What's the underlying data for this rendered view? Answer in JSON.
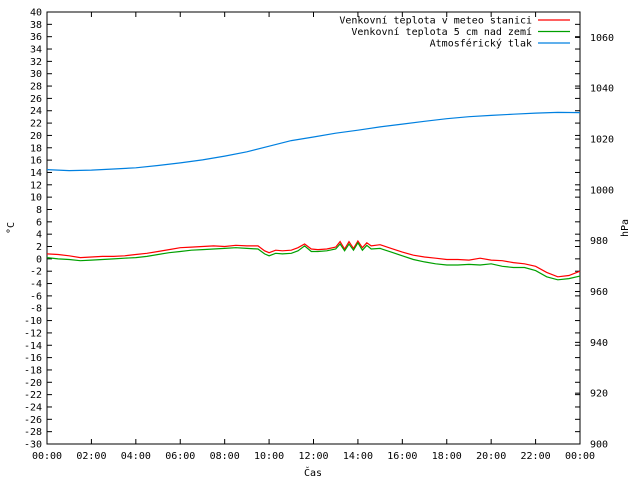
{
  "chart_data": {
    "type": "line",
    "xlabel": "Čas",
    "ylabel_left": "°C",
    "ylabel_right": "hPa",
    "x_ticks": [
      "00:00",
      "02:00",
      "04:00",
      "06:00",
      "08:00",
      "10:00",
      "12:00",
      "14:00",
      "16:00",
      "18:00",
      "20:00",
      "22:00",
      "00:00"
    ],
    "x_range_hours": [
      0,
      24
    ],
    "y_left_range": [
      -30,
      40
    ],
    "y_left_ticks": [
      40,
      38,
      36,
      34,
      32,
      30,
      28,
      26,
      24,
      22,
      20,
      18,
      16,
      14,
      12,
      10,
      8,
      6,
      4,
      2,
      0,
      -2,
      -4,
      -6,
      -8,
      -10,
      -12,
      -14,
      -16,
      -18,
      -20,
      -22,
      -24,
      -26,
      -28,
      -30
    ],
    "y_right_range": [
      900,
      1070
    ],
    "y_right_ticks": [
      1060,
      1040,
      1020,
      1000,
      980,
      960,
      940,
      920,
      900
    ],
    "grid": false,
    "legend_position": "top-right",
    "series": [
      {
        "name": "Venkovní teplota v meteo stanici",
        "axis": "left",
        "color": "#ff0000",
        "points": [
          [
            0,
            0.8
          ],
          [
            0.5,
            0.7
          ],
          [
            1,
            0.5
          ],
          [
            1.5,
            0.2
          ],
          [
            2,
            0.3
          ],
          [
            2.5,
            0.4
          ],
          [
            3,
            0.4
          ],
          [
            3.5,
            0.5
          ],
          [
            4,
            0.7
          ],
          [
            4.5,
            0.9
          ],
          [
            5,
            1.2
          ],
          [
            5.5,
            1.5
          ],
          [
            6,
            1.8
          ],
          [
            6.5,
            1.9
          ],
          [
            7,
            2.0
          ],
          [
            7.5,
            2.1
          ],
          [
            8,
            2.0
          ],
          [
            8.5,
            2.2
          ],
          [
            9,
            2.1
          ],
          [
            9.5,
            2.1
          ],
          [
            9.8,
            1.3
          ],
          [
            10,
            1.0
          ],
          [
            10.3,
            1.4
          ],
          [
            10.6,
            1.3
          ],
          [
            11,
            1.4
          ],
          [
            11.3,
            1.8
          ],
          [
            11.6,
            2.4
          ],
          [
            11.9,
            1.6
          ],
          [
            12.2,
            1.5
          ],
          [
            12.6,
            1.6
          ],
          [
            13,
            1.9
          ],
          [
            13.2,
            2.8
          ],
          [
            13.4,
            1.6
          ],
          [
            13.6,
            2.8
          ],
          [
            13.8,
            1.7
          ],
          [
            14,
            2.9
          ],
          [
            14.2,
            1.8
          ],
          [
            14.4,
            2.6
          ],
          [
            14.6,
            2.1
          ],
          [
            15,
            2.3
          ],
          [
            15.5,
            1.7
          ],
          [
            16,
            1.1
          ],
          [
            16.5,
            0.6
          ],
          [
            17,
            0.3
          ],
          [
            17.5,
            0.1
          ],
          [
            18,
            -0.1
          ],
          [
            18.5,
            -0.1
          ],
          [
            19,
            -0.2
          ],
          [
            19.5,
            0.1
          ],
          [
            20,
            -0.2
          ],
          [
            20.5,
            -0.3
          ],
          [
            21,
            -0.6
          ],
          [
            21.5,
            -0.8
          ],
          [
            22,
            -1.2
          ],
          [
            22.5,
            -2.2
          ],
          [
            23,
            -2.9
          ],
          [
            23.5,
            -2.7
          ],
          [
            24,
            -2.0
          ]
        ]
      },
      {
        "name": "Venkovní teplota 5 cm nad zemí",
        "axis": "left",
        "color": "#00a000",
        "points": [
          [
            0,
            0.2
          ],
          [
            0.5,
            0.0
          ],
          [
            1,
            -0.1
          ],
          [
            1.5,
            -0.3
          ],
          [
            2,
            -0.2
          ],
          [
            2.5,
            -0.1
          ],
          [
            3,
            0.0
          ],
          [
            3.5,
            0.1
          ],
          [
            4,
            0.2
          ],
          [
            4.5,
            0.4
          ],
          [
            5,
            0.7
          ],
          [
            5.5,
            1.0
          ],
          [
            6,
            1.2
          ],
          [
            6.5,
            1.4
          ],
          [
            7,
            1.5
          ],
          [
            7.5,
            1.6
          ],
          [
            8,
            1.7
          ],
          [
            8.5,
            1.8
          ],
          [
            9,
            1.7
          ],
          [
            9.5,
            1.6
          ],
          [
            9.8,
            0.8
          ],
          [
            10,
            0.5
          ],
          [
            10.3,
            0.9
          ],
          [
            10.6,
            0.8
          ],
          [
            11,
            0.9
          ],
          [
            11.3,
            1.3
          ],
          [
            11.6,
            2.1
          ],
          [
            11.9,
            1.2
          ],
          [
            12.2,
            1.2
          ],
          [
            12.6,
            1.3
          ],
          [
            13,
            1.6
          ],
          [
            13.2,
            2.4
          ],
          [
            13.4,
            1.3
          ],
          [
            13.6,
            2.4
          ],
          [
            13.8,
            1.4
          ],
          [
            14,
            2.6
          ],
          [
            14.2,
            1.4
          ],
          [
            14.4,
            2.2
          ],
          [
            14.6,
            1.6
          ],
          [
            15,
            1.7
          ],
          [
            15.5,
            1.1
          ],
          [
            16,
            0.5
          ],
          [
            16.5,
            -0.1
          ],
          [
            17,
            -0.5
          ],
          [
            17.5,
            -0.8
          ],
          [
            18,
            -1.0
          ],
          [
            18.5,
            -1.0
          ],
          [
            19,
            -0.9
          ],
          [
            19.5,
            -1.0
          ],
          [
            20,
            -0.8
          ],
          [
            20.5,
            -1.2
          ],
          [
            21,
            -1.4
          ],
          [
            21.5,
            -1.4
          ],
          [
            22,
            -1.9
          ],
          [
            22.5,
            -2.9
          ],
          [
            23,
            -3.4
          ],
          [
            23.5,
            -3.2
          ],
          [
            24,
            -2.8
          ]
        ]
      },
      {
        "name": "Atmosférický tlak",
        "axis": "right",
        "color": "#0080e0",
        "points": [
          [
            0,
            1008
          ],
          [
            1,
            1007.6
          ],
          [
            2,
            1007.8
          ],
          [
            3,
            1008.2
          ],
          [
            4,
            1008.7
          ],
          [
            5,
            1009.6
          ],
          [
            6,
            1010.6
          ],
          [
            7,
            1011.8
          ],
          [
            8,
            1013.3
          ],
          [
            9,
            1015
          ],
          [
            10,
            1017.2
          ],
          [
            11,
            1019.4
          ],
          [
            12,
            1020.8
          ],
          [
            13,
            1022.3
          ],
          [
            14,
            1023.5
          ],
          [
            15,
            1024.8
          ],
          [
            16,
            1025.9
          ],
          [
            17,
            1027
          ],
          [
            18,
            1028
          ],
          [
            19,
            1028.8
          ],
          [
            20,
            1029.3
          ],
          [
            21,
            1029.8
          ],
          [
            22,
            1030.2
          ],
          [
            23,
            1030.5
          ],
          [
            24,
            1030.4
          ]
        ]
      }
    ]
  }
}
